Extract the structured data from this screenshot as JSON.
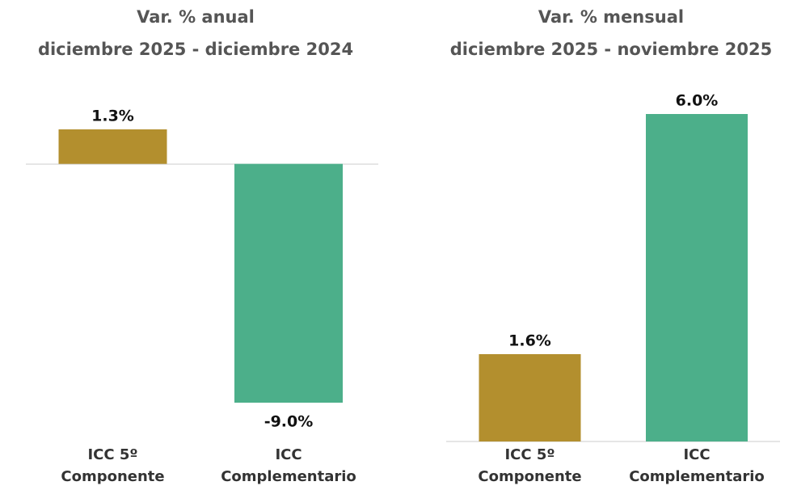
{
  "chart_data": [
    {
      "type": "bar",
      "title": "Var. % anual",
      "subtitle": "diciembre 2025 -  diciembre 2024",
      "categories": [
        [
          "ICC 5º",
          "Componente"
        ],
        [
          "ICC",
          "Complementario"
        ]
      ],
      "values": [
        1.3,
        -9.0
      ],
      "value_labels": [
        "1.3%",
        "-9.0%"
      ],
      "colors": [
        "#b38f2e",
        "#4caf8a"
      ]
    },
    {
      "type": "bar",
      "title": "Var. % mensual",
      "subtitle": "diciembre 2025 - noviembre 2025",
      "categories": [
        [
          "ICC 5º",
          "Componente"
        ],
        [
          "ICC",
          "Complementario"
        ]
      ],
      "values": [
        1.6,
        6.0
      ],
      "value_labels": [
        "1.6%",
        "6.0%"
      ],
      "colors": [
        "#b38f2e",
        "#4caf8a"
      ]
    }
  ]
}
